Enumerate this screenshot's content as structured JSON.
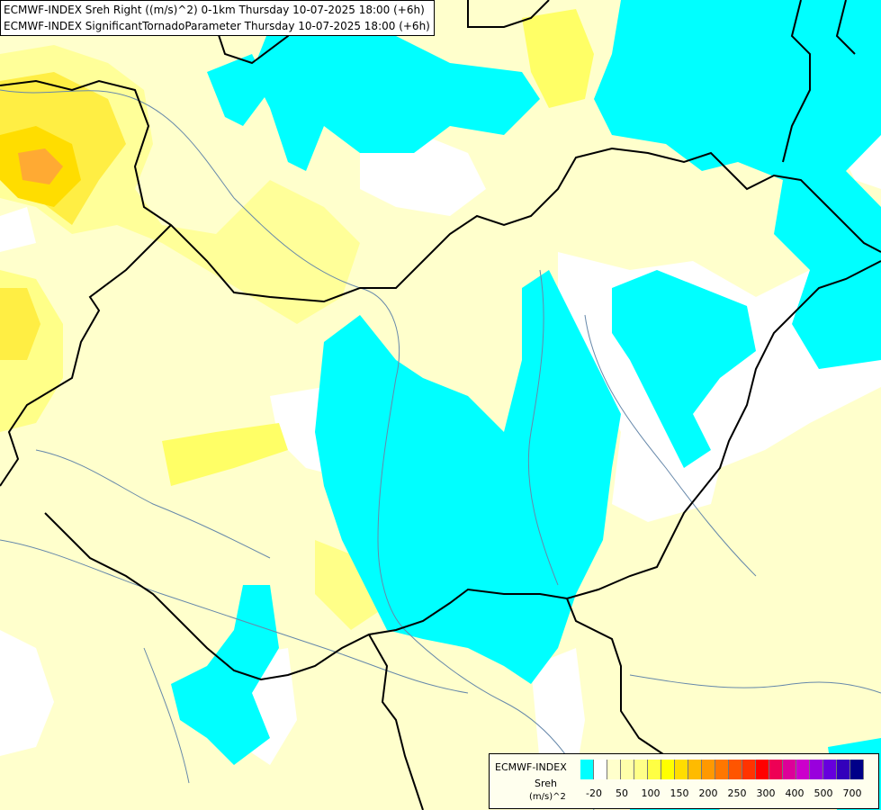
{
  "header": {
    "line1": "ECMWF-INDEX Sreh Right ((m/s)^2) 0-1km Thursday 10-07-2025 18:00 (+6h)",
    "line2": "ECMWF-INDEX SignificantTornadoParameter Thursday 10-07-2025 18:00 (+6h)"
  },
  "legend": {
    "title": "ECMWF-INDEX",
    "variable": "Sreh",
    "unit": "(m/s)^2",
    "colors": [
      "#00ffff",
      "#ffffff",
      "#ffffcc",
      "#ffffaa",
      "#ffff88",
      "#ffff44",
      "#ffff00",
      "#ffdd00",
      "#ffbb00",
      "#ff9900",
      "#ff7700",
      "#ff5500",
      "#ff3300",
      "#ff0000",
      "#ee0055",
      "#dd0099",
      "#cc00cc",
      "#9900dd",
      "#6600dd",
      "#3300bb",
      "#000088"
    ],
    "tick_labels": [
      "-20",
      "50",
      "100",
      "150",
      "200",
      "250",
      "300",
      "400",
      "500",
      "700"
    ]
  }
}
